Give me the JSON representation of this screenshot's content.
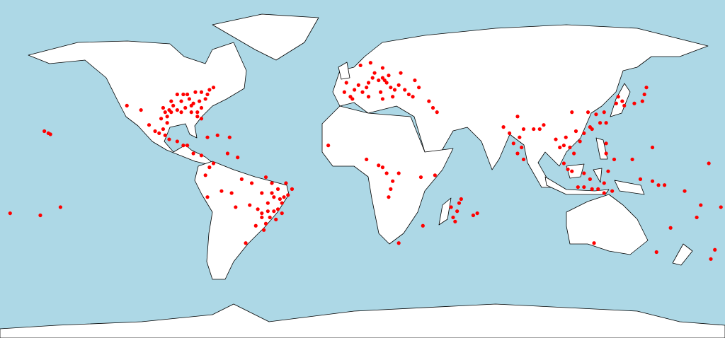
{
  "map": {
    "points": [
      [
        -95,
        30
      ],
      [
        -90,
        30
      ],
      [
        -85,
        33
      ],
      [
        -82,
        30
      ],
      [
        -80,
        27
      ],
      [
        -81,
        35
      ],
      [
        -78,
        36
      ],
      [
        -84,
        34
      ],
      [
        -88,
        32
      ],
      [
        -92,
        31
      ],
      [
        -97,
        28
      ],
      [
        -98,
        30
      ],
      [
        -94,
        33
      ],
      [
        -86,
        36
      ],
      [
        -90,
        35
      ],
      [
        -77,
        38
      ],
      [
        -76,
        40
      ],
      [
        -80,
        39
      ],
      [
        -83,
        39
      ],
      [
        -87,
        38
      ],
      [
        -95,
        35
      ],
      [
        -99,
        32
      ],
      [
        -82,
        28
      ],
      [
        -85,
        30
      ],
      [
        -80,
        32
      ],
      [
        -96,
        31
      ],
      [
        -89,
        38
      ],
      [
        -74,
        41
      ],
      [
        -92,
        38
      ],
      [
        -100,
        27
      ],
      [
        -97,
        25
      ],
      [
        -99,
        22
      ],
      [
        -101,
        20
      ],
      [
        -98,
        19
      ],
      [
        -103,
        21
      ],
      [
        -96,
        17
      ],
      [
        -92,
        16
      ],
      [
        -89,
        14
      ],
      [
        -87,
        14
      ],
      [
        -84,
        10
      ],
      [
        -80,
        9
      ],
      [
        -110,
        31
      ],
      [
        -117,
        33
      ],
      [
        -106,
        24
      ],
      [
        -77,
        18
      ],
      [
        -72,
        19
      ],
      [
        -66,
        18
      ],
      [
        -158,
        21
      ],
      [
        -156,
        20
      ],
      [
        -155,
        19.5
      ],
      [
        -74,
        5
      ],
      [
        -76,
        3
      ],
      [
        -67,
        10
      ],
      [
        -62,
        8
      ],
      [
        -78,
        -1
      ],
      [
        -60,
        -3
      ],
      [
        -55,
        -5
      ],
      [
        -48,
        -2
      ],
      [
        -50,
        -10
      ],
      [
        -45,
        -5
      ],
      [
        -42,
        -8
      ],
      [
        -38,
        -5
      ],
      [
        -35,
        -8
      ],
      [
        -37,
        -11
      ],
      [
        -40,
        -15
      ],
      [
        -44,
        -12
      ],
      [
        -47,
        -15
      ],
      [
        -44,
        -19
      ],
      [
        -40,
        -20
      ],
      [
        -43,
        -23
      ],
      [
        -46,
        -22
      ],
      [
        -48,
        -25
      ],
      [
        -50,
        -22
      ],
      [
        -52,
        -18
      ],
      [
        -53,
        -26
      ],
      [
        -49,
        -28
      ],
      [
        -56,
        -16
      ],
      [
        -63,
        -17
      ],
      [
        -65,
        -10
      ],
      [
        -70,
        -9
      ],
      [
        -77,
        -12
      ],
      [
        -58,
        -34
      ],
      [
        -42,
        -18
      ],
      [
        -39,
        -12
      ],
      [
        -45,
        -10
      ],
      [
        -50,
        -20
      ],
      [
        -47,
        -19
      ],
      [
        -41,
        -13
      ],
      [
        -175,
        -20
      ],
      [
        -150,
        -17
      ],
      [
        -160,
        -21
      ],
      [
        -9,
        39
      ],
      [
        -6,
        37
      ],
      [
        -4,
        40
      ],
      [
        -2,
        42
      ],
      [
        2,
        41
      ],
      [
        3,
        43
      ],
      [
        5,
        45
      ],
      [
        8,
        44
      ],
      [
        10,
        45
      ],
      [
        12,
        43
      ],
      [
        14,
        41
      ],
      [
        16,
        40
      ],
      [
        15,
        37
      ],
      [
        18,
        42
      ],
      [
        21,
        40
      ],
      [
        23,
        38
      ],
      [
        25,
        37
      ],
      [
        28,
        41
      ],
      [
        33,
        35
      ],
      [
        0,
        39
      ],
      [
        -8,
        43
      ],
      [
        6,
        47
      ],
      [
        10,
        49
      ],
      [
        4,
        51
      ],
      [
        -1,
        50
      ],
      [
        9,
        39
      ],
      [
        11,
        44
      ],
      [
        13,
        46
      ],
      [
        19,
        47
      ],
      [
        26,
        44
      ],
      [
        -5,
        36
      ],
      [
        3,
        37
      ],
      [
        10,
        36
      ],
      [
        35,
        32
      ],
      [
        37,
        30
      ],
      [
        -17,
        14
      ],
      [
        2,
        7
      ],
      [
        8,
        4
      ],
      [
        10,
        3
      ],
      [
        12,
        0
      ],
      [
        15,
        -4
      ],
      [
        14,
        -8
      ],
      [
        13,
        -12
      ],
      [
        18,
        0
      ],
      [
        29,
        -2
      ],
      [
        36,
        -1
      ],
      [
        30,
        -26
      ],
      [
        18,
        -34
      ],
      [
        47,
        -19
      ],
      [
        48,
        -15
      ],
      [
        46,
        -24
      ],
      [
        45,
        -22
      ],
      [
        55,
        -21
      ],
      [
        57,
        -20
      ],
      [
        49,
        -13
      ],
      [
        44,
        -17
      ],
      [
        73,
        20
      ],
      [
        75,
        15
      ],
      [
        77,
        10
      ],
      [
        79,
        13
      ],
      [
        80,
        22
      ],
      [
        85,
        22
      ],
      [
        88,
        22
      ],
      [
        90,
        24
      ],
      [
        77,
        28
      ],
      [
        70,
        23
      ],
      [
        80,
        7
      ],
      [
        78,
        18
      ],
      [
        96,
        17
      ],
      [
        98,
        13
      ],
      [
        100,
        14
      ],
      [
        101,
        18
      ],
      [
        103,
        13
      ],
      [
        105,
        10
      ],
      [
        106,
        21
      ],
      [
        108,
        16
      ],
      [
        100,
        5
      ],
      [
        102,
        2
      ],
      [
        104,
        1
      ],
      [
        110,
        0
      ],
      [
        113,
        -3
      ],
      [
        107,
        -7
      ],
      [
        110,
        -7
      ],
      [
        114,
        -8
      ],
      [
        117,
        -8
      ],
      [
        120,
        -10
      ],
      [
        124,
        -9
      ],
      [
        120,
        -5
      ],
      [
        122,
        1
      ],
      [
        125,
        7
      ],
      [
        121,
        15
      ],
      [
        121,
        10
      ],
      [
        114,
        22
      ],
      [
        113,
        23
      ],
      [
        110,
        20
      ],
      [
        118,
        25
      ],
      [
        120,
        30
      ],
      [
        116,
        29
      ],
      [
        112,
        30
      ],
      [
        104,
        30
      ],
      [
        121,
        25
      ],
      [
        127,
        37
      ],
      [
        129,
        35
      ],
      [
        130,
        33
      ],
      [
        135,
        34
      ],
      [
        139,
        35
      ],
      [
        140,
        38
      ],
      [
        141,
        41
      ],
      [
        126,
        34
      ],
      [
        144,
        13
      ],
      [
        147,
        -6
      ],
      [
        150,
        -6
      ],
      [
        144,
        -4
      ],
      [
        138,
        -3
      ],
      [
        153,
        -27
      ],
      [
        146,
        -38
      ],
      [
        173,
        -41
      ],
      [
        175,
        -37
      ],
      [
        178,
        -17
      ],
      [
        166,
        -22
      ],
      [
        168,
        -16
      ],
      [
        160,
        -9
      ],
      [
        115,
        -34
      ],
      [
        172,
        5
      ],
      [
        134,
        7
      ]
    ]
  }
}
